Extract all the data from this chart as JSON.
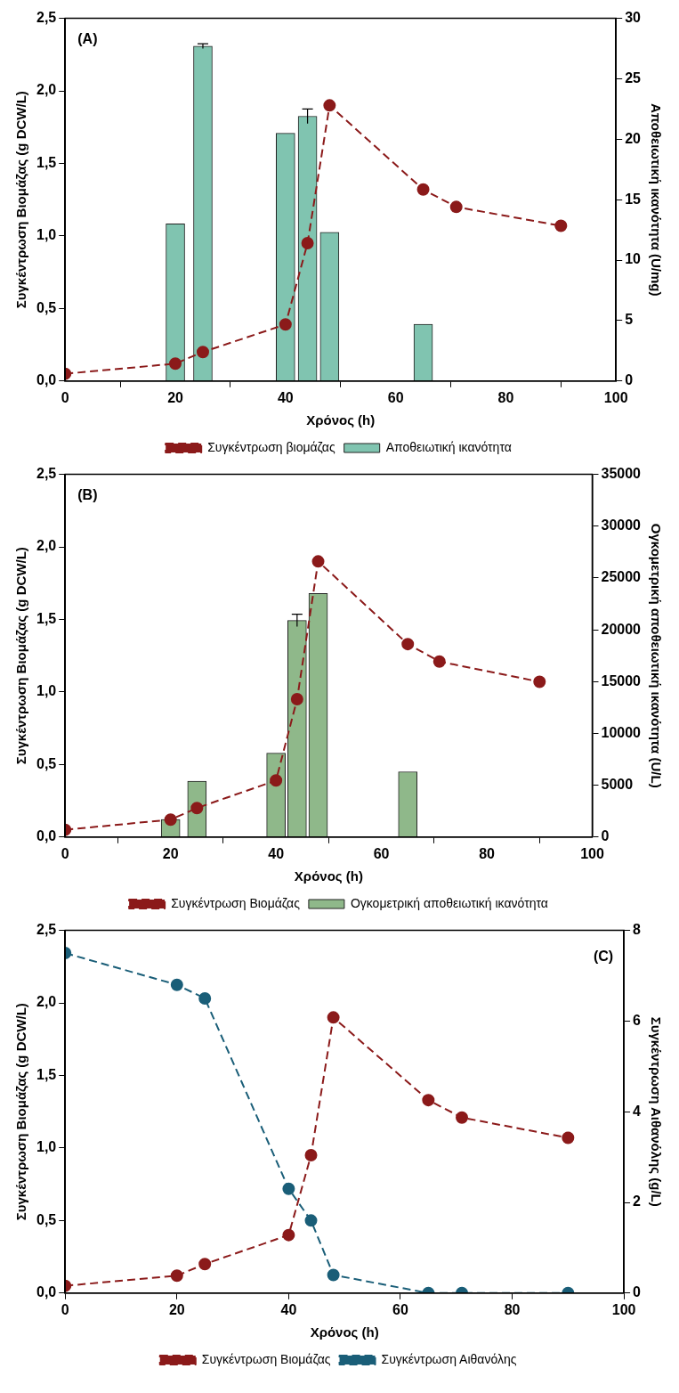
{
  "chart_data": [
    {
      "type": "bar",
      "xlabel": "Χρόνος (h)",
      "ylabel": "Συγκέντρωση Βιομάζας (g DCW/L)",
      "y2label": "Αποθειωτική ικανότητα (U/mg)",
      "annotations": [
        "(A)"
      ],
      "x": [
        0,
        20,
        25,
        40,
        44,
        48,
        65,
        71,
        90
      ],
      "series": [
        {
          "name": "Συγκέντρωση βιομάζας",
          "type": "line",
          "color": "#8b1a1a",
          "values": [
            0.05,
            0.12,
            0.2,
            0.39,
            0.95,
            1.9,
            1.32,
            1.2,
            1.07
          ]
        },
        {
          "name": "Αποθειωτική ικανότητα",
          "type": "bar",
          "axis": "y2",
          "color": "#80c4b0",
          "x": [
            20,
            25,
            40,
            44,
            48,
            65
          ],
          "values": [
            13.0,
            27.7,
            20.5,
            21.9,
            12.3,
            4.7
          ],
          "errors": [
            null,
            0.2,
            null,
            0.6,
            null,
            null
          ]
        }
      ],
      "xlim": [
        0,
        100
      ],
      "xticks": [
        0,
        20,
        40,
        60,
        80,
        100
      ],
      "ylim": [
        0,
        2.5
      ],
      "yticks": [
        {
          "value": 0,
          "label": "0,0"
        },
        {
          "value": 0.5,
          "label": "0,5"
        },
        {
          "value": 1,
          "label": "1,0"
        },
        {
          "value": 1.5,
          "label": "1,5"
        },
        {
          "value": 2,
          "label": "2,0"
        },
        {
          "value": 2.5,
          "label": "2,5"
        }
      ],
      "y2lim": [
        0,
        30
      ],
      "y2ticks": [
        0,
        5,
        10,
        15,
        20,
        25,
        30
      ],
      "grid": false,
      "legend": "bottom",
      "marker": "circle",
      "line_style": "dashed"
    },
    {
      "type": "bar",
      "xlabel": "Χρόνος (h)",
      "ylabel": "Συγκέντρωση Βιομάζας (g DCW/L)",
      "y2label": "Ογκομετρική αποθειωτική ικανότητα (U/L)",
      "annotations": [
        "(B)"
      ],
      "x": [
        0,
        20,
        25,
        40,
        44,
        48,
        65,
        71,
        90
      ],
      "series": [
        {
          "name": "Συγκέντρωση Βιομάζας",
          "type": "line",
          "color": "#8b1a1a",
          "values": [
            0.05,
            0.12,
            0.2,
            0.39,
            0.95,
            1.9,
            1.33,
            1.21,
            1.07
          ]
        },
        {
          "name": "Ογκομετρική αποθειωτική ικανότητα",
          "type": "bar",
          "axis": "y2",
          "color": "#8fb88a",
          "x": [
            20,
            25,
            40,
            44,
            48,
            65
          ],
          "values": [
            1700,
            5400,
            8100,
            20900,
            23500,
            6300
          ],
          "errors": [
            null,
            null,
            null,
            600,
            null,
            null
          ]
        }
      ],
      "xlim": [
        0,
        100
      ],
      "xticks": [
        0,
        20,
        40,
        60,
        80,
        100
      ],
      "ylim": [
        0,
        2.5
      ],
      "yticks": [
        {
          "value": 0,
          "label": "0,0"
        },
        {
          "value": 0.5,
          "label": "0,5"
        },
        {
          "value": 1,
          "label": "1,0"
        },
        {
          "value": 1.5,
          "label": "1,5"
        },
        {
          "value": 2,
          "label": "2,0"
        },
        {
          "value": 2.5,
          "label": "2,5"
        }
      ],
      "y2lim": [
        0,
        35000
      ],
      "y2ticks": [
        0,
        5000,
        10000,
        15000,
        20000,
        25000,
        30000,
        35000
      ],
      "grid": false,
      "legend": "bottom",
      "marker": "circle",
      "line_style": "dashed"
    },
    {
      "type": "line",
      "xlabel": "Χρόνος (h)",
      "ylabel": "Συγκέντρωση Βιομάζας (g DCW/L)",
      "y2label": "Συγκέντρωση Αιθανόλης (g/L)",
      "annotations": [
        "(C)"
      ],
      "x": [
        0,
        20,
        25,
        40,
        44,
        48,
        65,
        71,
        90
      ],
      "series": [
        {
          "name": "Συγκέντρωση Βιομάζας",
          "type": "line",
          "color": "#8b1a1a",
          "values": [
            0.05,
            0.12,
            0.2,
            0.4,
            0.95,
            1.9,
            1.33,
            1.21,
            1.07
          ]
        },
        {
          "name": "Συγκέντρωση Αιθανόλης",
          "type": "line",
          "axis": "y2",
          "color": "#1a5e78",
          "values": [
            7.5,
            6.8,
            6.5,
            2.3,
            1.6,
            0.4,
            0,
            0,
            0
          ]
        }
      ],
      "xlim": [
        0,
        100
      ],
      "xticks": [
        0,
        20,
        40,
        60,
        80,
        100
      ],
      "ylim": [
        0,
        2.5
      ],
      "yticks": [
        {
          "value": 0,
          "label": "0,0"
        },
        {
          "value": 0.5,
          "label": "0,5"
        },
        {
          "value": 1,
          "label": "1,0"
        },
        {
          "value": 1.5,
          "label": "1,5"
        },
        {
          "value": 2,
          "label": "2,0"
        },
        {
          "value": 2.5,
          "label": "2,5"
        }
      ],
      "y2lim": [
        0,
        8
      ],
      "y2ticks": [
        0,
        2,
        4,
        6,
        8
      ],
      "grid": false,
      "legend": "bottom",
      "marker": "circle",
      "line_style": "dashed"
    }
  ]
}
